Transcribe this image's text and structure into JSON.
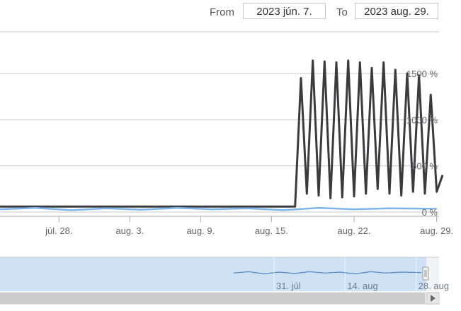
{
  "range_selector": {
    "from_label": "From",
    "from_value": "2023 jún. 7.",
    "to_label": "To",
    "to_value": "2023 aug. 29."
  },
  "colors": {
    "series_dark": "#3a3b3f",
    "series_blue": "#7cb5ec",
    "navigator_fill": "#cfe1f5",
    "navigator_line": "#4f87c3",
    "grid": "#c8c8c8"
  },
  "chart_data": {
    "type": "line",
    "x_range": [
      "2023-07-23",
      "2023-08-29"
    ],
    "ylim": [
      0,
      1600
    ],
    "y_ticks": [
      {
        "value": 0,
        "label": "0 %"
      },
      {
        "value": 500,
        "label": "500 %"
      },
      {
        "value": 1000,
        "label": "1000 %"
      },
      {
        "value": 1500,
        "label": "1500 %"
      }
    ],
    "x_ticks": [
      {
        "date": "2023-07-28",
        "label": "júl. 28."
      },
      {
        "date": "2023-08-03",
        "label": "aug. 3."
      },
      {
        "date": "2023-08-09",
        "label": "aug. 9."
      },
      {
        "date": "2023-08-15",
        "label": "aug. 15."
      },
      {
        "date": "2023-08-22",
        "label": "aug. 22."
      },
      {
        "date": "2023-08-29",
        "label": "aug. 29."
      }
    ],
    "series": [
      {
        "color": "#3a3b3f",
        "x": [
          "2023-07-23",
          "2023-08-17",
          "2023-08-17",
          "2023-08-18",
          "2023-08-18",
          "2023-08-19",
          "2023-08-19",
          "2023-08-20",
          "2023-08-20",
          "2023-08-21",
          "2023-08-21",
          "2023-08-22",
          "2023-08-22",
          "2023-08-23",
          "2023-08-23",
          "2023-08-24",
          "2023-08-24",
          "2023-08-25",
          "2023-08-25",
          "2023-08-26",
          "2023-08-26",
          "2023-08-27",
          "2023-08-27",
          "2023-08-28",
          "2023-08-28",
          "2023-08-29",
          "2023-08-29"
        ],
        "values": [
          60,
          60,
          1450,
          200,
          1640,
          180,
          1630,
          150,
          1620,
          160,
          1640,
          170,
          1620,
          200,
          1560,
          250,
          1620,
          200,
          1540,
          180,
          1500,
          220,
          1480,
          200,
          1270,
          220,
          400
        ]
      },
      {
        "color": "#7cb5ec",
        "x": [
          "2023-07-23",
          "2023-07-26",
          "2023-07-29",
          "2023-08-01",
          "2023-08-04",
          "2023-08-07",
          "2023-08-10",
          "2023-08-13",
          "2023-08-16",
          "2023-08-19",
          "2023-08-22",
          "2023-08-25",
          "2023-08-29"
        ],
        "values": [
          30,
          45,
          20,
          40,
          25,
          45,
          30,
          40,
          20,
          45,
          30,
          40,
          35
        ]
      }
    ],
    "navigator": {
      "x_ticks": [
        {
          "date": "2023-07-31",
          "label": "31. júl"
        },
        {
          "date": "2023-08-14",
          "label": "14. aug"
        },
        {
          "date": "2023-08-28",
          "label": "28. aug"
        }
      ]
    }
  }
}
